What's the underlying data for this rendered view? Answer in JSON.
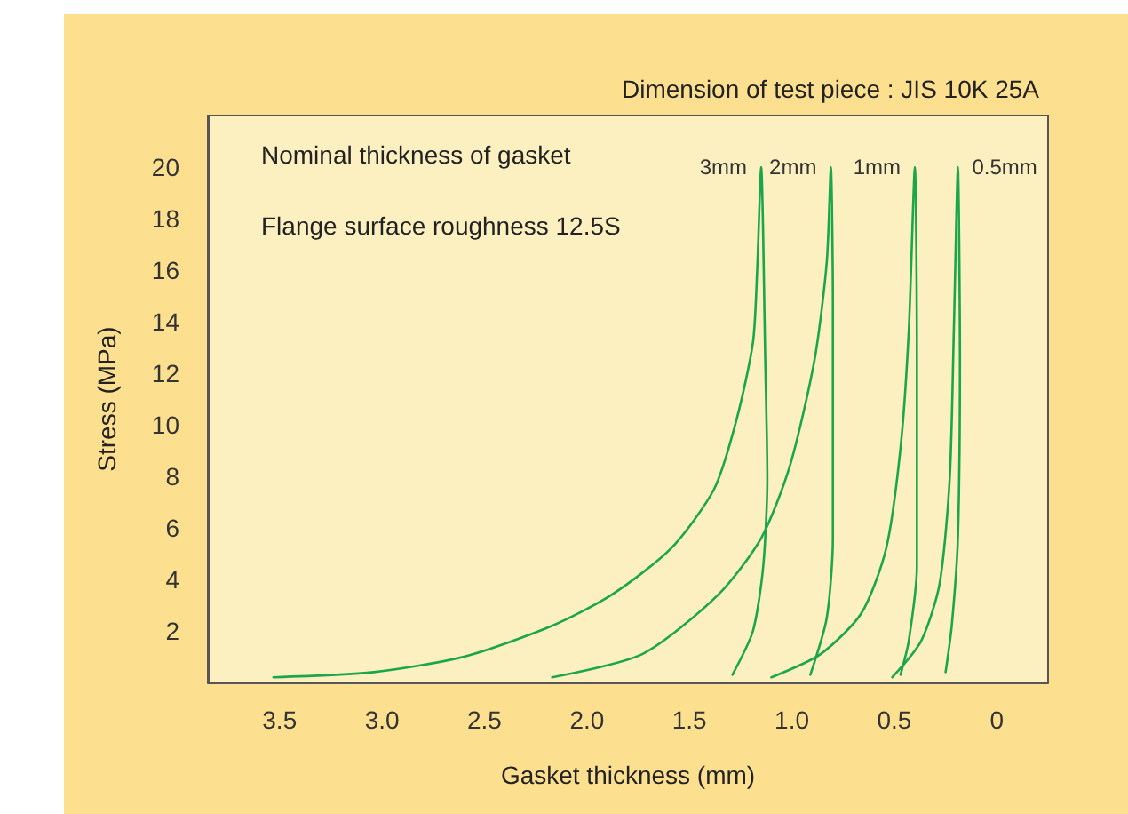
{
  "chart_data": {
    "type": "line",
    "title": "Dimension of test piece : JIS 10K 25A",
    "xlabel": "Gasket thickness (mm)",
    "ylabel": "Stress (MPa)",
    "annotations": [
      "Nominal thickness of gasket",
      "Flange surface roughness 12.5S"
    ],
    "xlim": [
      3.85,
      -0.25
    ],
    "xticks": [
      3.5,
      {
        "value": 3,
        "label": "3.0"
      },
      2.5,
      {
        "value": 2,
        "label": "2.0"
      },
      1.5,
      {
        "value": 1,
        "label": "1.0"
      },
      0.5,
      0
    ],
    "ylim": [
      0,
      22
    ],
    "yticks": [
      2,
      4,
      6,
      8,
      10,
      12,
      14,
      16,
      18,
      20
    ],
    "grid": false,
    "legend": false,
    "marker": "none",
    "line_style": "solid",
    "series": [
      {
        "name": "3mm",
        "color": "#1aa64a",
        "x": [
          3.53,
          3.04,
          2.6,
          2.17,
          1.88,
          1.59,
          1.38,
          1.27,
          1.19,
          1.17,
          1.15,
          1.13,
          1.12,
          1.14,
          1.19,
          1.29
        ],
        "values": [
          0.2,
          0.4,
          1,
          2.2,
          3.4,
          5.2,
          7.5,
          10.2,
          13.2,
          15.9,
          20,
          12.5,
          7.9,
          4.5,
          2,
          0.3
        ]
      },
      {
        "name": "2mm",
        "color": "#1aa64a",
        "x": [
          2.17,
          1.73,
          1.36,
          1.15,
          1.01,
          0.89,
          0.83,
          0.81,
          0.8,
          0.8,
          0.83,
          0.91
        ],
        "values": [
          0.2,
          1.1,
          3.4,
          5.6,
          8.4,
          12.5,
          16.3,
          20,
          14.7,
          5.6,
          2.5,
          0.3
        ]
      },
      {
        "name": "1mm",
        "color": "#1aa64a",
        "x": [
          1.1,
          0.86,
          0.66,
          0.54,
          0.47,
          0.43,
          0.4,
          0.39,
          0.39,
          0.43,
          0.47
        ],
        "values": [
          0.2,
          1.1,
          2.7,
          5.2,
          9.1,
          13.6,
          20,
          12.5,
          4.5,
          1.6,
          0.3
        ]
      },
      {
        "name": "0.5mm",
        "color": "#1aa64a",
        "x": [
          0.51,
          0.37,
          0.28,
          0.23,
          0.21,
          0.19,
          0.18,
          0.19,
          0.22,
          0.25
        ],
        "values": [
          0.2,
          1.6,
          3.8,
          7.9,
          13.6,
          20,
          12.5,
          5.6,
          2.2,
          0.4
        ]
      }
    ]
  }
}
